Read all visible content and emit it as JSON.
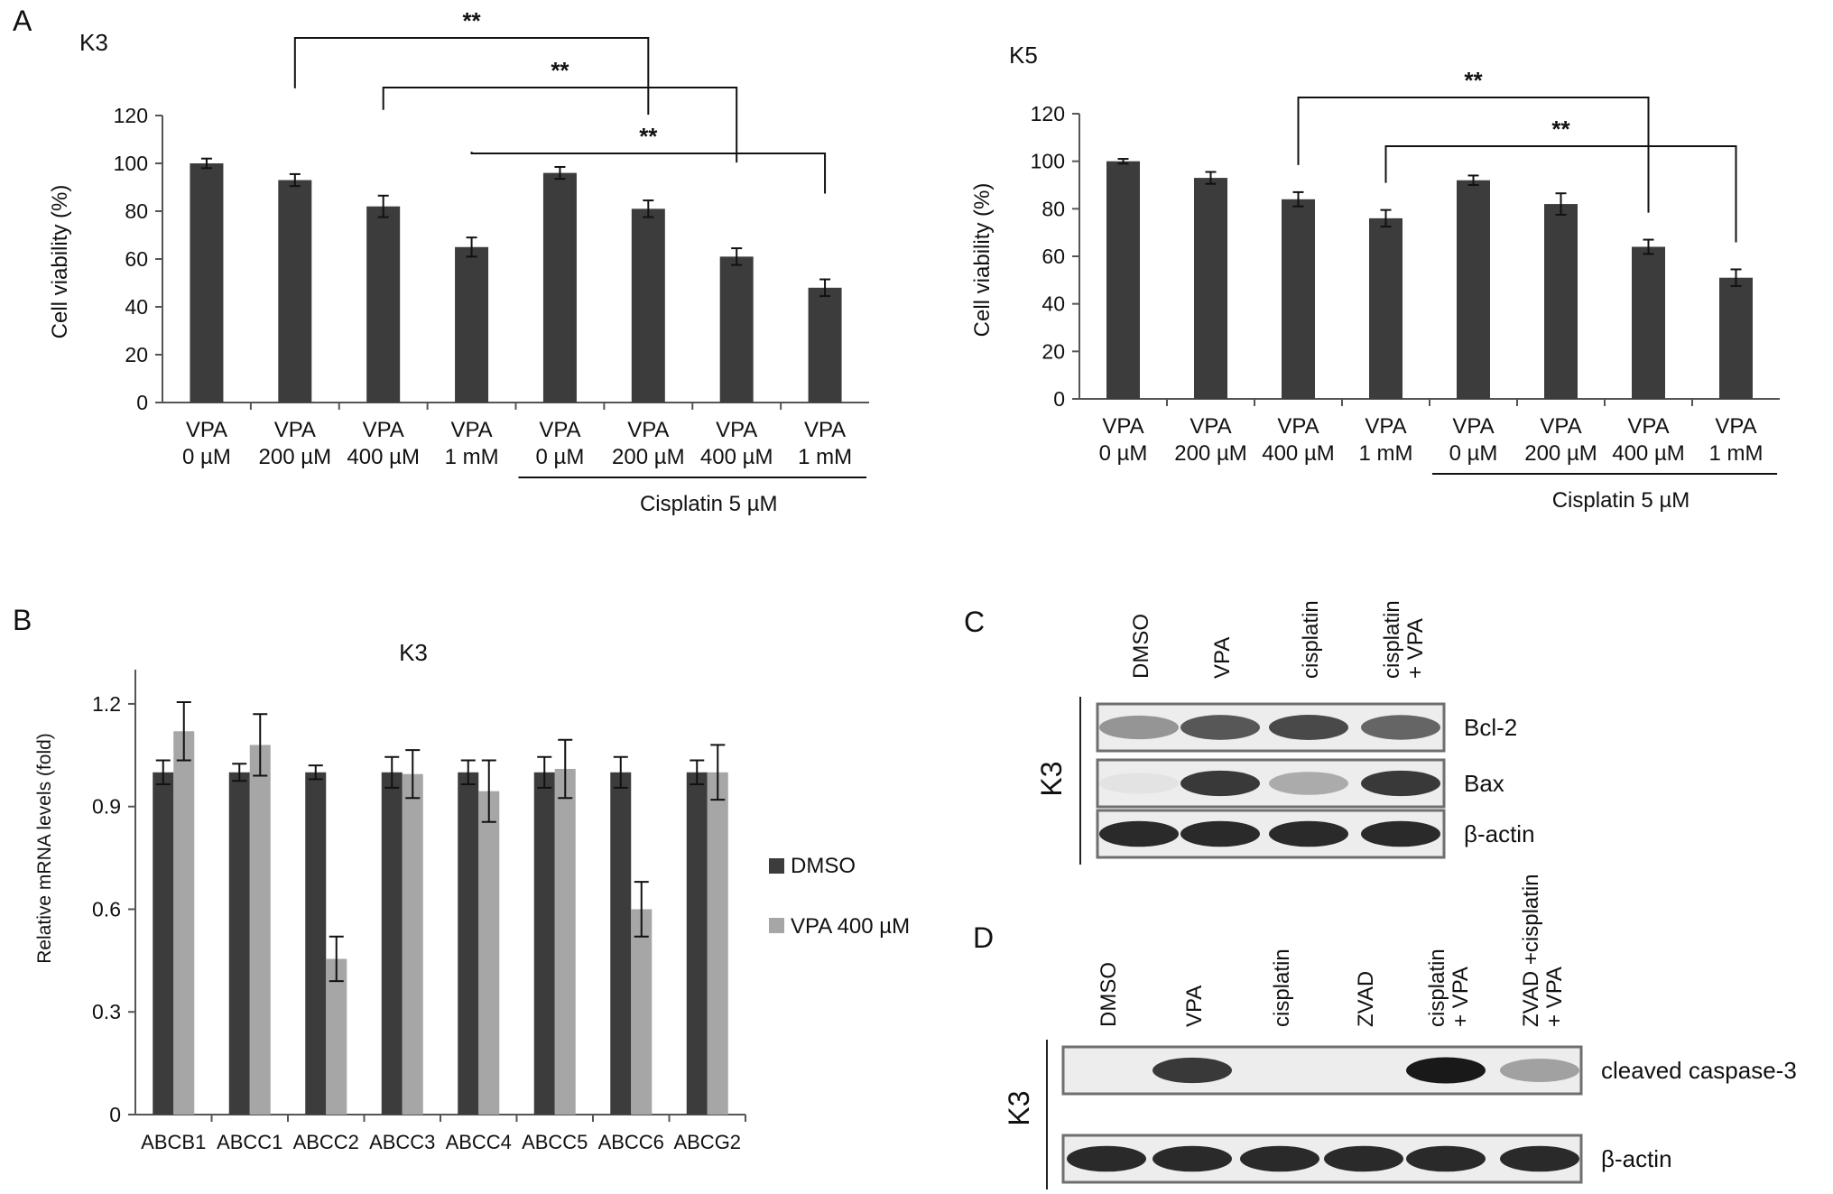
{
  "panels": {
    "A": {
      "letter": "A"
    },
    "B": {
      "letter": "B"
    },
    "C": {
      "letter": "C"
    },
    "D": {
      "letter": "D"
    }
  },
  "chart_data": [
    {
      "id": "A_K3",
      "panel": "A",
      "type": "bar",
      "title": "K3",
      "ylabel": "Cell viability (%)",
      "xlabel": "",
      "ylim": [
        0,
        120
      ],
      "yticks": [
        0,
        20,
        40,
        60,
        80,
        100,
        120
      ],
      "categories": [
        {
          "line1": "VPA",
          "line2": "0 µM"
        },
        {
          "line1": "VPA",
          "line2": "200 µM"
        },
        {
          "line1": "VPA",
          "line2": "400 µM"
        },
        {
          "line1": "VPA",
          "line2": "1 mM"
        },
        {
          "line1": "VPA",
          "line2": "0 µM"
        },
        {
          "line1": "VPA",
          "line2": "200 µM"
        },
        {
          "line1": "VPA",
          "line2": "400 µM"
        },
        {
          "line1": "VPA",
          "line2": "1 mM"
        }
      ],
      "values": [
        100,
        93,
        82,
        65,
        96,
        81,
        61,
        48
      ],
      "errors": [
        2,
        2.5,
        4.5,
        4,
        2.5,
        3.5,
        3.5,
        3.5
      ],
      "bar_color": "#3c3c3c",
      "group_label": {
        "text": "Cisplatin 5 µM",
        "from_index": 4,
        "to_index": 7
      },
      "significance": [
        {
          "from_index": 1,
          "to_index": 5,
          "label": "**"
        },
        {
          "from_index": 2,
          "to_index": 6,
          "label": "**"
        },
        {
          "from_index": 3,
          "to_index": 7,
          "label": "**"
        }
      ]
    },
    {
      "id": "A_K5",
      "panel": "A",
      "type": "bar",
      "title": "K5",
      "ylabel": "Cell viability (%)",
      "xlabel": "",
      "ylim": [
        0,
        120
      ],
      "yticks": [
        0,
        20,
        40,
        60,
        80,
        100,
        120
      ],
      "categories": [
        {
          "line1": "VPA",
          "line2": "0 µM"
        },
        {
          "line1": "VPA",
          "line2": "200 µM"
        },
        {
          "line1": "VPA",
          "line2": "400 µM"
        },
        {
          "line1": "VPA",
          "line2": "1 mM"
        },
        {
          "line1": "VPA",
          "line2": "0 µM"
        },
        {
          "line1": "VPA",
          "line2": "200 µM"
        },
        {
          "line1": "VPA",
          "line2": "400 µM"
        },
        {
          "line1": "VPA",
          "line2": "1 mM"
        }
      ],
      "values": [
        100,
        93,
        84,
        76,
        92,
        82,
        64,
        51
      ],
      "errors": [
        1,
        2.5,
        3,
        3.5,
        2,
        4.5,
        3,
        3.5
      ],
      "bar_color": "#3c3c3c",
      "group_label": {
        "text": "Cisplatin 5 µM",
        "from_index": 4,
        "to_index": 7
      },
      "significance": [
        {
          "from_index": 2,
          "to_index": 6,
          "label": "**"
        },
        {
          "from_index": 3,
          "to_index": 7,
          "label": "**"
        }
      ]
    },
    {
      "id": "B_K3",
      "panel": "B",
      "type": "bar",
      "title": "K3",
      "ylabel": "Relative mRNA levels (fold)",
      "xlabel": "",
      "ylim": [
        0,
        1.3
      ],
      "yticks": [
        0,
        0.3,
        0.6,
        0.9,
        1.2
      ],
      "ytick_labels": [
        "0",
        "0.3",
        "0.6",
        "0.9",
        "1.2"
      ],
      "categories": [
        "ABCB1",
        "ABCC1",
        "ABCC2",
        "ABCC3",
        "ABCC4",
        "ABCC5",
        "ABCC6",
        "ABCG2"
      ],
      "series": [
        {
          "name": "DMSO",
          "color": "#3c3c3c",
          "values": [
            1.0,
            1.0,
            1.0,
            1.0,
            1.0,
            1.0,
            1.0,
            1.0
          ],
          "errors": [
            0.035,
            0.025,
            0.02,
            0.045,
            0.035,
            0.045,
            0.045,
            0.035
          ]
        },
        {
          "name": "VPA 400 µM",
          "color": "#a6a6a6",
          "values": [
            1.12,
            1.08,
            0.455,
            0.995,
            0.945,
            1.01,
            0.6,
            1.0
          ],
          "errors": [
            0.085,
            0.09,
            0.065,
            0.07,
            0.09,
            0.085,
            0.08,
            0.08
          ]
        }
      ],
      "legend_position": "right"
    }
  ],
  "blots": {
    "C": {
      "side_label": "K3",
      "lanes": [
        {
          "line1": "DMSO",
          "line2": ""
        },
        {
          "line1": "VPA",
          "line2": ""
        },
        {
          "line1": "cisplatin",
          "line2": ""
        },
        {
          "line1": "cisplatin",
          "line2": "+ VPA"
        }
      ],
      "rows": [
        {
          "label": "Bcl-2",
          "intensities": [
            0.55,
            0.8,
            0.85,
            0.75
          ]
        },
        {
          "label": "Bax",
          "intensities": [
            0.08,
            0.9,
            0.45,
            0.9
          ]
        },
        {
          "label": "β-actin",
          "intensities": [
            0.95,
            0.95,
            0.95,
            0.95
          ]
        }
      ]
    },
    "D": {
      "side_label": "K3",
      "lanes": [
        {
          "line1": "DMSO",
          "line2": ""
        },
        {
          "line1": "VPA",
          "line2": ""
        },
        {
          "line1": "cisplatin",
          "line2": ""
        },
        {
          "line1": "ZVAD",
          "line2": ""
        },
        {
          "line1": "cisplatin",
          "line2": "+ VPA"
        },
        {
          "line1": "ZVAD +cisplatin",
          "line2": "+ VPA"
        }
      ],
      "rows": [
        {
          "label": "cleaved caspase-3",
          "intensities": [
            0,
            0.9,
            0,
            0,
            1.0,
            0.5
          ]
        },
        {
          "label": "β-actin",
          "intensities": [
            0.95,
            0.95,
            0.95,
            0.95,
            0.95,
            0.95
          ]
        }
      ]
    }
  }
}
